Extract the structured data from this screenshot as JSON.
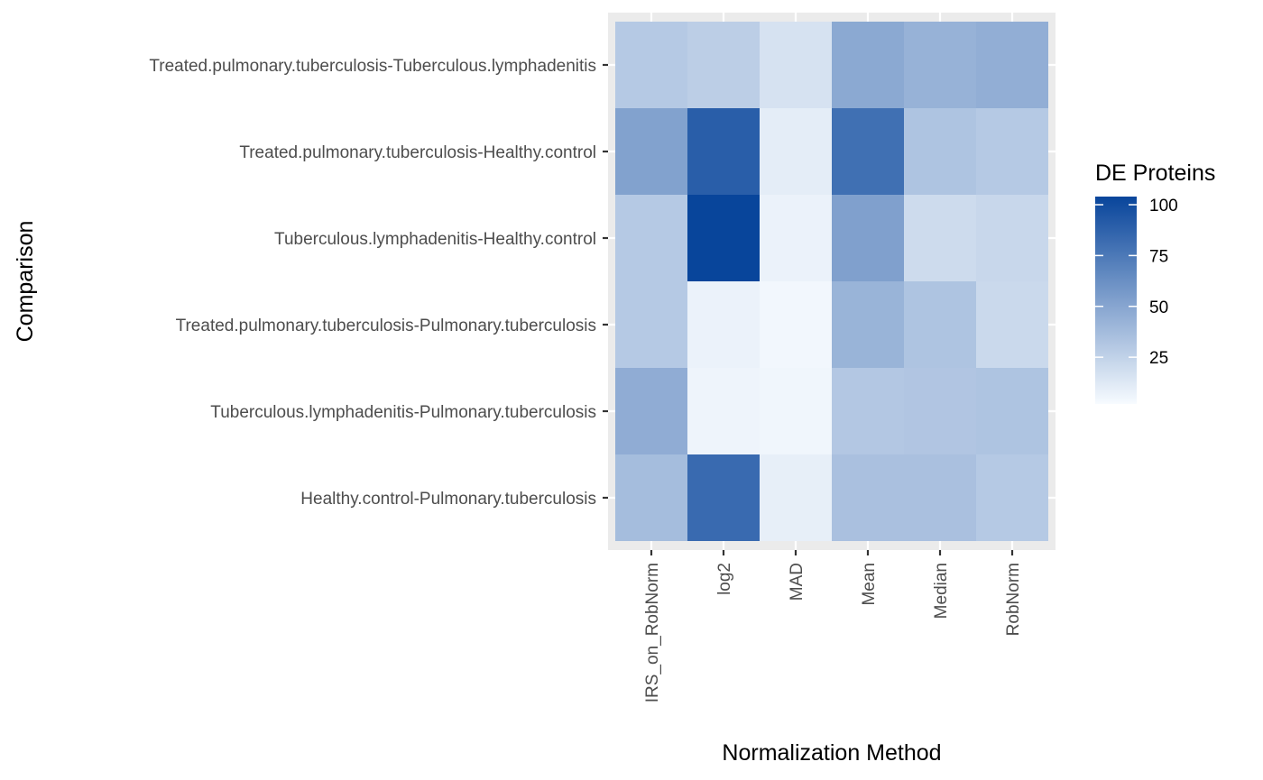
{
  "chart_data": {
    "type": "heatmap",
    "title": "",
    "xlabel": "Normalization Method",
    "ylabel": "Comparison",
    "x_categories": [
      "IRS_on_RobNorm",
      "log2",
      "MAD",
      "Mean",
      "Median",
      "RobNorm"
    ],
    "y_categories": [
      "Treated.pulmonary.tuberculosis-Tuberculous.lymphadenitis",
      "Treated.pulmonary.tuberculosis-Healthy.control",
      "Tuberculous.lymphadenitis-Healthy.control",
      "Treated.pulmonary.tuberculosis-Pulmonary.tuberculosis",
      "Tuberculous.lymphadenitis-Pulmonary.tuberculosis",
      "Healthy.control-Pulmonary.tuberculosis"
    ],
    "values": [
      [
        30,
        27,
        16,
        48,
        43,
        45
      ],
      [
        52,
        90,
        10,
        80,
        33,
        30
      ],
      [
        30,
        104,
        7,
        53,
        20,
        22
      ],
      [
        30,
        7,
        4,
        42,
        33,
        21
      ],
      [
        46,
        6,
        5,
        31,
        32,
        33
      ],
      [
        37,
        83,
        9,
        35,
        35,
        30
      ]
    ],
    "legend": {
      "title": "DE Proteins",
      "position": "right",
      "ticks": [
        25,
        50,
        75,
        100
      ],
      "range": [
        2,
        104
      ],
      "low_color": "#f7fbff",
      "high_color": "#08459b"
    },
    "grid": true
  }
}
